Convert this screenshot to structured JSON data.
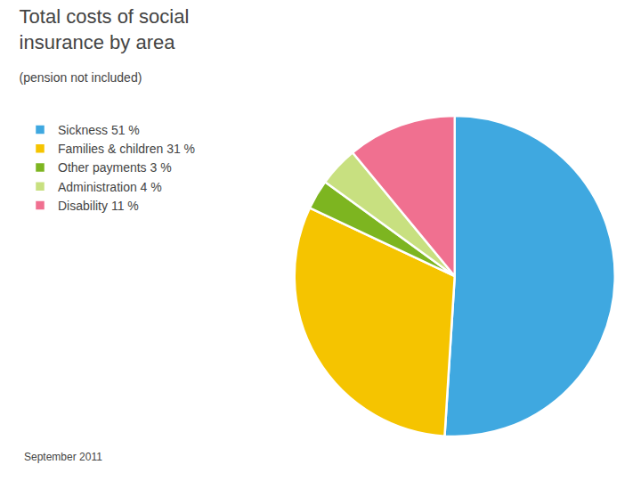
{
  "chart_data": {
    "type": "pie",
    "title": "Total costs of social\ninsurance by area",
    "subtitle": "(pension not included)",
    "categories": [
      "Sickness 51 %",
      "Families & children 31 %",
      "Other payments 3 %",
      "Administration 4 %",
      "Disability 11 %"
    ],
    "values": [
      51,
      31,
      3,
      4,
      11
    ],
    "colors": [
      "#3fa8e0",
      "#f5c400",
      "#7db520",
      "#c8e080",
      "#f07090"
    ],
    "legend": "upper left",
    "annotations": [
      "September 2011"
    ]
  }
}
